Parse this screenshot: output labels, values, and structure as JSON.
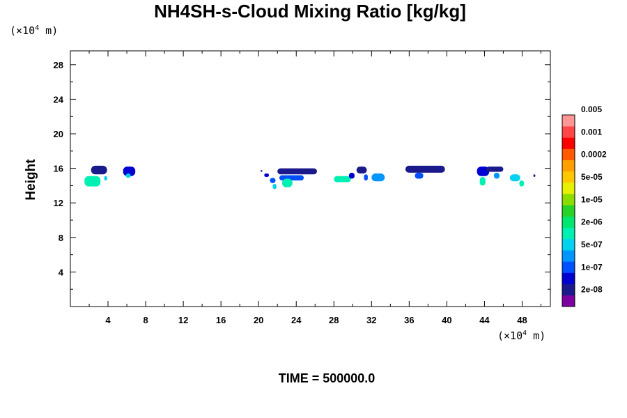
{
  "chart_data": {
    "type": "heatmap",
    "title": "NH4SH-s-Cloud Mixing Ratio [kg/kg]",
    "xlabel": "",
    "ylabel": "Height",
    "x_unit": {
      "prefix": "(×10",
      "exp": "4",
      "suffix": " m)"
    },
    "y_unit": {
      "prefix": "(×10",
      "exp": "4",
      "suffix": " m)"
    },
    "xlim": [
      0,
      51
    ],
    "ylim": [
      0,
      29.6
    ],
    "x_ticks": [
      "4",
      "8",
      "12",
      "16",
      "20",
      "24",
      "28",
      "32",
      "36",
      "40",
      "44",
      "48"
    ],
    "y_ticks": [
      "4",
      "8",
      "12",
      "16",
      "20",
      "24",
      "28"
    ],
    "grid": false,
    "colorbar": {
      "placement": "right",
      "colors": [
        "#7d00a0",
        "#1a1a8c",
        "#0000d2",
        "#0050ff",
        "#0096ff",
        "#00d2f0",
        "#00f0b4",
        "#00e66e",
        "#28d228",
        "#8cdc00",
        "#e6f000",
        "#ffc800",
        "#ffa000",
        "#ff5a00",
        "#ff0000",
        "#ff4646",
        "#ff9696"
      ],
      "labels": [
        "2e-08",
        "1e-07",
        "5e-07",
        "2e-06",
        "1e-05",
        "5e-05",
        "0.0002",
        "0.001",
        "0.005"
      ]
    },
    "clouds": [
      {
        "x": [
          2.2,
          3.9
        ],
        "y": [
          15.3,
          16.3
        ],
        "level": 1
      },
      {
        "x": [
          1.5,
          3.2
        ],
        "y": [
          13.9,
          15.1
        ],
        "level": 6
      },
      {
        "x": [
          3.6,
          3.9
        ],
        "y": [
          14.6,
          15.1
        ],
        "level": 5
      },
      {
        "x": [
          5.6,
          6.9
        ],
        "y": [
          15.1,
          16.2
        ],
        "level": 2
      },
      {
        "x": [
          5.9,
          6.4
        ],
        "y": [
          14.9,
          15.4
        ],
        "level": 5
      },
      {
        "x": [
          20.2,
          20.4
        ],
        "y": [
          15.6,
          15.8
        ],
        "level": 1
      },
      {
        "x": [
          20.6,
          21.1
        ],
        "y": [
          15.0,
          15.4
        ],
        "level": 2
      },
      {
        "x": [
          21.2,
          21.8
        ],
        "y": [
          14.3,
          14.9
        ],
        "level": 3
      },
      {
        "x": [
          21.5,
          21.9
        ],
        "y": [
          13.6,
          14.2
        ],
        "level": 5
      },
      {
        "x": [
          22.0,
          26.2
        ],
        "y": [
          15.3,
          16.0
        ],
        "level": 1
      },
      {
        "x": [
          22.2,
          24.8
        ],
        "y": [
          14.6,
          15.2
        ],
        "level": 3
      },
      {
        "x": [
          22.5,
          23.6
        ],
        "y": [
          13.8,
          14.8
        ],
        "level": 6
      },
      {
        "x": [
          28.0,
          29.8
        ],
        "y": [
          14.4,
          15.1
        ],
        "level": 6
      },
      {
        "x": [
          29.6,
          30.2
        ],
        "y": [
          14.8,
          15.5
        ],
        "level": 2
      },
      {
        "x": [
          30.4,
          31.5
        ],
        "y": [
          15.4,
          16.2
        ],
        "level": 1
      },
      {
        "x": [
          31.2,
          31.6
        ],
        "y": [
          14.6,
          15.3
        ],
        "level": 3
      },
      {
        "x": [
          32.0,
          33.4
        ],
        "y": [
          14.5,
          15.4
        ],
        "level": 4
      },
      {
        "x": [
          35.6,
          39.8
        ],
        "y": [
          15.5,
          16.3
        ],
        "level": 1
      },
      {
        "x": [
          36.6,
          37.5
        ],
        "y": [
          14.8,
          15.5
        ],
        "level": 3
      },
      {
        "x": [
          43.2,
          44.5
        ],
        "y": [
          15.1,
          16.2
        ],
        "level": 2
      },
      {
        "x": [
          43.5,
          44.1
        ],
        "y": [
          14.0,
          15.0
        ],
        "level": 6
      },
      {
        "x": [
          44.2,
          46.0
        ],
        "y": [
          15.6,
          16.2
        ],
        "level": 1
      },
      {
        "x": [
          45.0,
          45.6
        ],
        "y": [
          14.8,
          15.5
        ],
        "level": 4
      },
      {
        "x": [
          46.7,
          47.8
        ],
        "y": [
          14.5,
          15.3
        ],
        "level": 5
      },
      {
        "x": [
          47.7,
          48.2
        ],
        "y": [
          13.9,
          14.6
        ],
        "level": 6
      },
      {
        "x": [
          49.2,
          49.4
        ],
        "y": [
          15.0,
          15.3
        ],
        "level": 1
      }
    ],
    "time_label": "TIME = 500000.0"
  }
}
